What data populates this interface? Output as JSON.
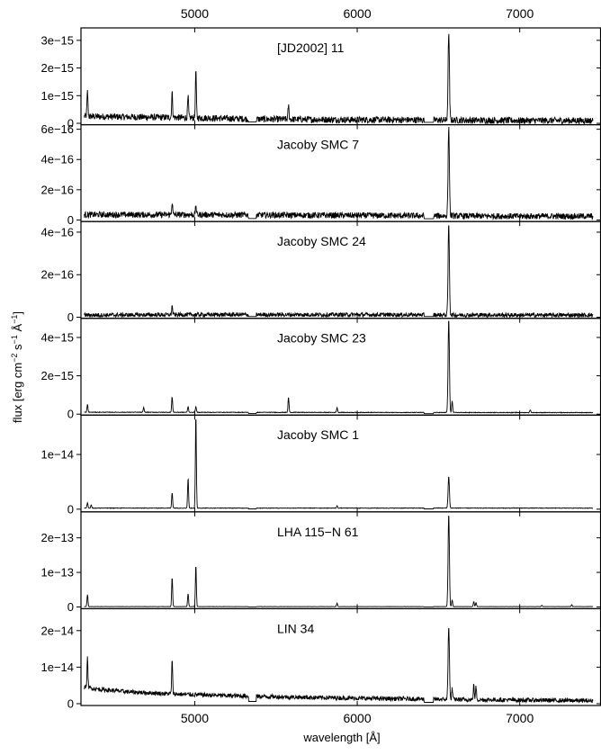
{
  "figure": {
    "xlabel": "wavelength [Å]",
    "ylabel": "flux [erg cm^-2 s^-1 Å^-1]",
    "ylabel_parts": {
      "a": "flux [erg cm",
      "e1": "−2",
      "b": " s",
      "e2": "−1",
      "c": " Å",
      "e3": "−1",
      "d": "]"
    },
    "xlim": [
      4300,
      7500
    ],
    "x_ticks": [
      5000,
      6000,
      7000
    ],
    "x_tick_labels": [
      "5000",
      "6000",
      "7000"
    ]
  },
  "chart_data": [
    {
      "type": "line",
      "title": "[JD2002] 11",
      "ylim": [
        -5e-17,
        3.45e-15
      ],
      "y_ticks": [
        0,
        1e-15,
        2e-15,
        3e-15
      ],
      "y_tick_labels": [
        "0",
        "1e−15",
        "2e−15",
        "3e−15"
      ],
      "continuum": {
        "x": [
          4320,
          5000,
          5400,
          6000,
          6420,
          7000,
          7450
        ],
        "y": [
          2.5e-16,
          2e-16,
          1.5e-16,
          1.3e-16,
          1.2e-16,
          1e-16,
          1e-16
        ]
      },
      "noise": 1.2e-16,
      "lines": [
        [
          4340,
          9e-16
        ],
        [
          4861,
          9e-16
        ],
        [
          4959,
          7.5e-16
        ],
        [
          5007,
          1.75e-15
        ],
        [
          5577,
          5e-16
        ],
        [
          6563,
          3.2e-15
        ]
      ]
    },
    {
      "type": "line",
      "title": "Jacoby SMC 7",
      "ylim": [
        -1e-17,
        6.3e-16
      ],
      "y_ticks": [
        0,
        2e-16,
        4e-16,
        6e-16
      ],
      "y_tick_labels": [
        "0",
        "2e−16",
        "4e−16",
        "6e−16"
      ],
      "continuum": {
        "x": [
          4320,
          5000,
          6000,
          7000,
          7450
        ],
        "y": [
          3.5e-17,
          3.5e-17,
          3e-17,
          2.5e-17,
          2.5e-17
        ]
      },
      "noise": 2e-17,
      "lines": [
        [
          4861,
          8e-17
        ],
        [
          5007,
          6e-17
        ],
        [
          6563,
          5.9e-16
        ]
      ]
    },
    {
      "type": "line",
      "title": "Jacoby SMC 24",
      "ylim": [
        -5e-18,
        4.5e-16
      ],
      "y_ticks": [
        0,
        2e-16,
        4e-16
      ],
      "y_tick_labels": [
        "0",
        "2e−16",
        "4e−16"
      ],
      "continuum": {
        "x": [
          4320,
          5000,
          6000,
          7000,
          7450
        ],
        "y": [
          1e-17,
          1.2e-17,
          1.2e-17,
          1e-17,
          1e-17
        ]
      },
      "noise": 1e-17,
      "lines": [
        [
          4861,
          4e-17
        ],
        [
          6563,
          4.3e-16
        ]
      ]
    },
    {
      "type": "line",
      "title": "Jacoby SMC 23",
      "ylim": [
        -5e-17,
        5e-15
      ],
      "y_ticks": [
        0,
        2e-15,
        4e-15
      ],
      "y_tick_labels": [
        "0",
        "2e−15",
        "4e−15"
      ],
      "continuum": {
        "x": [
          4320,
          7450
        ],
        "y": [
          1e-16,
          8e-17
        ]
      },
      "noise": 1.5e-17,
      "lines": [
        [
          4340,
          4e-16
        ],
        [
          4686,
          2.5e-16
        ],
        [
          4861,
          8e-16
        ],
        [
          4959,
          3e-16
        ],
        [
          5007,
          3e-16
        ],
        [
          5577,
          8e-16
        ],
        [
          5876,
          2.5e-16
        ],
        [
          6563,
          4.9e-15
        ],
        [
          6584,
          6e-16
        ],
        [
          7065,
          1.5e-16
        ]
      ]
    },
    {
      "type": "line",
      "title": "Jacoby SMC 1",
      "ylim": [
        -5e-16,
        1.72e-14
      ],
      "y_ticks": [
        0,
        1e-14
      ],
      "y_tick_labels": [
        "0",
        "1e−14"
      ],
      "continuum": {
        "x": [
          4320,
          7450
        ],
        "y": [
          2e-16,
          2e-16
        ]
      },
      "noise": 5e-17,
      "lines": [
        [
          4340,
          1e-15
        ],
        [
          4363,
          6e-16
        ],
        [
          4861,
          2.8e-15
        ],
        [
          4959,
          5.5e-15
        ],
        [
          5007,
          1.7e-14
        ],
        [
          5876,
          4e-16
        ],
        [
          6563,
          5.8e-15
        ]
      ]
    },
    {
      "type": "line",
      "title": "LHA 115−N 61",
      "ylim": [
        -5e-15,
        2.75e-13
      ],
      "y_ticks": [
        0,
        1e-13,
        2e-13
      ],
      "y_tick_labels": [
        "0",
        "1e−13",
        "2e−13"
      ],
      "continuum": {
        "x": [
          4320,
          7450
        ],
        "y": [
          1e-15,
          1e-15
        ]
      },
      "noise": 3e-16,
      "lines": [
        [
          4340,
          3.5e-14
        ],
        [
          4861,
          8.5e-14
        ],
        [
          4959,
          3.8e-14
        ],
        [
          5007,
          1.2e-13
        ],
        [
          5876,
          1e-14
        ],
        [
          6563,
          2.7e-13
        ],
        [
          6584,
          2e-14
        ],
        [
          6717,
          1.5e-14
        ],
        [
          6731,
          1.2e-14
        ],
        [
          7136,
          4e-15
        ],
        [
          7320,
          6e-15
        ]
      ]
    },
    {
      "type": "line",
      "title": "LIN 34",
      "ylim": [
        -5e-16,
        2.6e-14
      ],
      "y_ticks": [
        0,
        1e-14,
        2e-14
      ],
      "y_tick_labels": [
        "0",
        "1e−14",
        "2e−14"
      ],
      "continuum": {
        "x": [
          4320,
          4400,
          4600,
          4900,
          5200,
          5600,
          6000,
          6500,
          7000,
          7450
        ],
        "y": [
          4.5e-15,
          4e-15,
          3.2e-15,
          2.6e-15,
          2.2e-15,
          1.8e-15,
          1.5e-15,
          1.2e-15,
          1e-15,
          8e-16
        ]
      },
      "noise": 6e-16,
      "lines": [
        [
          4340,
          8e-15
        ],
        [
          4861,
          9e-15
        ],
        [
          6563,
          2.05e-14
        ],
        [
          6584,
          3e-15
        ],
        [
          6717,
          4e-15
        ],
        [
          6731,
          3.5e-15
        ]
      ]
    }
  ]
}
